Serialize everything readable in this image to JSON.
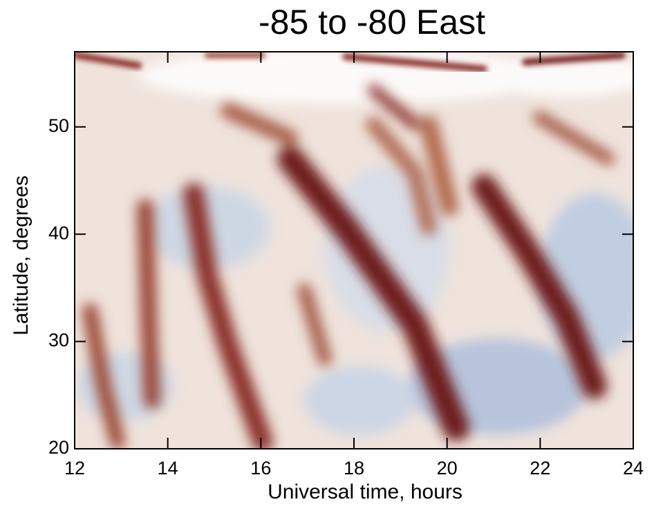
{
  "chart_data": {
    "type": "heatmap",
    "title": "-85 to -80 East",
    "x_label": "Universal time, hours",
    "y_label": "Latitude, degrees",
    "xlim": [
      12,
      24
    ],
    "ylim": [
      20,
      57
    ],
    "xticks": [
      12,
      14,
      16,
      18,
      20,
      22,
      24
    ],
    "yticks": [
      20,
      30,
      40,
      50
    ]
  }
}
